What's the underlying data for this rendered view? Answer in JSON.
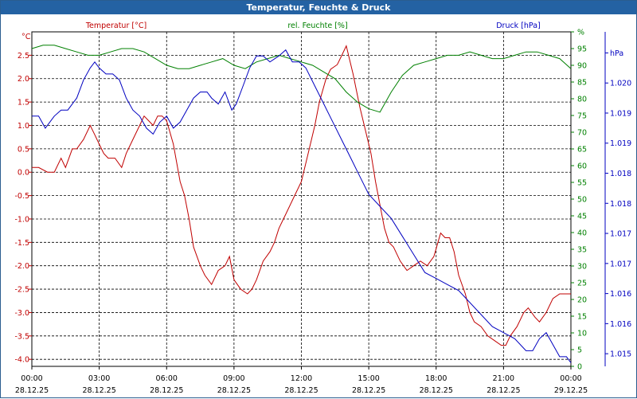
{
  "window": {
    "title": "Temperatur, Feuchte & Druck"
  },
  "chart_data": {
    "type": "line",
    "title": "Temperatur, Feuchte & Druck",
    "x_ticks": [
      {
        "hours": 0,
        "time": "00:00",
        "date": "28.12.25"
      },
      {
        "hours": 3,
        "time": "03:00",
        "date": "28.12.25"
      },
      {
        "hours": 6,
        "time": "06:00",
        "date": "28.12.25"
      },
      {
        "hours": 9,
        "time": "09:00",
        "date": "28.12.25"
      },
      {
        "hours": 12,
        "time": "12:00",
        "date": "28.12.25"
      },
      {
        "hours": 15,
        "time": "15:00",
        "date": "28.12.25"
      },
      {
        "hours": 18,
        "time": "18:00",
        "date": "28.12.25"
      },
      {
        "hours": 21,
        "time": "21:00",
        "date": "28.12.25"
      },
      {
        "hours": 24,
        "time": "00:00",
        "date": "29.12.25"
      }
    ],
    "xlim": [
      0,
      24
    ],
    "series": [
      {
        "name": "Temperatur [°C]",
        "unit": "°C",
        "color": "#c00000",
        "ylim": [
          -4.15,
          3.0
        ],
        "ticks": [
          "-4.0",
          "-3.5",
          "-3.0",
          "-2.5",
          "-2.0",
          "-1.5",
          "-1.0",
          "-0.5",
          "0.0",
          "0.5",
          "1.0",
          "1.5",
          "2.0",
          "2.5"
        ],
        "x": [
          0,
          0.3,
          0.7,
          1.0,
          1.3,
          1.5,
          1.8,
          2.0,
          2.3,
          2.6,
          2.8,
          3.0,
          3.2,
          3.4,
          3.7,
          4.0,
          4.2,
          4.5,
          4.8,
          5.0,
          5.2,
          5.4,
          5.6,
          5.8,
          6.0,
          6.3,
          6.6,
          6.8,
          7.0,
          7.2,
          7.5,
          7.7,
          8.0,
          8.3,
          8.6,
          8.8,
          9.0,
          9.3,
          9.6,
          9.8,
          10.0,
          10.3,
          10.6,
          10.8,
          11.0,
          11.3,
          11.6,
          12.0,
          12.3,
          12.6,
          12.8,
          13.1,
          13.3,
          13.6,
          13.8,
          14.0,
          14.3,
          14.6,
          14.9,
          15.1,
          15.3,
          15.5,
          15.7,
          15.9,
          16.1,
          16.4,
          16.7,
          17.0,
          17.3,
          17.6,
          17.9,
          18.2,
          18.4,
          18.6,
          18.8,
          19.0,
          19.3,
          19.5,
          19.7,
          20.0,
          20.3,
          20.6,
          20.9,
          21.1,
          21.3,
          21.6,
          21.9,
          22.1,
          22.4,
          22.6,
          22.9,
          23.2,
          23.5,
          23.8,
          24.0
        ],
        "values": [
          0.1,
          0.1,
          0.0,
          0.0,
          0.3,
          0.1,
          0.5,
          0.5,
          0.7,
          1.0,
          0.8,
          0.6,
          0.4,
          0.3,
          0.3,
          0.1,
          0.4,
          0.7,
          1.0,
          1.2,
          1.1,
          1.0,
          1.2,
          1.2,
          1.1,
          0.6,
          -0.2,
          -0.5,
          -1.0,
          -1.6,
          -2.0,
          -2.2,
          -2.4,
          -2.1,
          -2.0,
          -1.8,
          -2.3,
          -2.5,
          -2.6,
          -2.5,
          -2.3,
          -1.9,
          -1.7,
          -1.5,
          -1.2,
          -0.9,
          -0.6,
          -0.2,
          0.4,
          1.0,
          1.5,
          2.0,
          2.2,
          2.3,
          2.5,
          2.7,
          2.1,
          1.4,
          0.8,
          0.4,
          -0.2,
          -0.7,
          -1.2,
          -1.5,
          -1.6,
          -1.9,
          -2.1,
          -2.0,
          -1.9,
          -2.0,
          -1.8,
          -1.3,
          -1.4,
          -1.4,
          -1.7,
          -2.2,
          -2.6,
          -3.0,
          -3.2,
          -3.3,
          -3.5,
          -3.6,
          -3.7,
          -3.7,
          -3.5,
          -3.3,
          -3.0,
          -2.9,
          -3.1,
          -3.2,
          -3.0,
          -2.7,
          -2.6,
          -2.6,
          -2.6
        ]
      },
      {
        "name": "rel. Feuchte [%]",
        "unit": "%",
        "color": "#008000",
        "ylim": [
          0,
          100
        ],
        "ticks": [
          "0",
          "5",
          "10",
          "15",
          "20",
          "25",
          "30",
          "35",
          "40",
          "45",
          "50",
          "55",
          "60",
          "65",
          "70",
          "75",
          "80",
          "85",
          "90",
          "95",
          "%"
        ],
        "x": [
          0,
          0.5,
          1.0,
          1.5,
          2.0,
          2.5,
          3.0,
          3.5,
          4.0,
          4.5,
          5.0,
          5.5,
          6.0,
          6.5,
          7.0,
          7.5,
          8.0,
          8.5,
          9.0,
          9.5,
          10.0,
          10.5,
          11.0,
          11.5,
          12.0,
          12.5,
          13.0,
          13.5,
          14.0,
          14.5,
          15.0,
          15.5,
          16.0,
          16.5,
          17.0,
          17.5,
          18.0,
          18.5,
          19.0,
          19.5,
          20.0,
          20.5,
          21.0,
          21.5,
          22.0,
          22.5,
          23.0,
          23.5,
          24.0
        ],
        "values": [
          95,
          96,
          96,
          95,
          94,
          93,
          93,
          94,
          95,
          95,
          94,
          92,
          90,
          89,
          89,
          90,
          91,
          92,
          90,
          89,
          91,
          92,
          93,
          92,
          91,
          90,
          88,
          86,
          82,
          79,
          77,
          76,
          82,
          87,
          90,
          91,
          92,
          93,
          93,
          94,
          93,
          92,
          92,
          93,
          94,
          94,
          93,
          92,
          89
        ]
      },
      {
        "name": "Druck [hPa]",
        "unit": "hPa",
        "color": "#0000c0",
        "ylim": [
          1014.74,
          1020.3
        ],
        "ticks": [
          "1.015",
          "1.016",
          "1.016",
          "1.017",
          "1.017",
          "1.018",
          "1.018",
          "1.019",
          "1.019",
          "1.020",
          "hPa"
        ],
        "x": [
          0,
          0.3,
          0.6,
          0.8,
          1.0,
          1.3,
          1.6,
          2.0,
          2.3,
          2.6,
          2.8,
          3.0,
          3.3,
          3.6,
          3.9,
          4.2,
          4.5,
          4.8,
          5.1,
          5.4,
          5.7,
          6.0,
          6.3,
          6.6,
          6.9,
          7.2,
          7.5,
          7.8,
          8.0,
          8.3,
          8.6,
          8.9,
          9.1,
          9.4,
          9.7,
          10.0,
          10.3,
          10.6,
          11.0,
          11.3,
          11.6,
          11.9,
          12.2,
          12.6,
          13.0,
          13.4,
          13.8,
          14.2,
          14.6,
          15.0,
          15.5,
          16.0,
          16.5,
          17.0,
          17.5,
          18.0,
          18.5,
          19.0,
          19.5,
          20.0,
          20.5,
          21.0,
          21.5,
          22.0,
          22.3,
          22.6,
          22.9,
          23.2,
          23.5,
          23.8,
          24.0
        ],
        "values": [
          1018.9,
          1018.9,
          1018.7,
          1018.8,
          1018.9,
          1019.0,
          1019.0,
          1019.2,
          1019.5,
          1019.7,
          1019.8,
          1019.7,
          1019.6,
          1019.6,
          1019.5,
          1019.2,
          1019.0,
          1018.9,
          1018.7,
          1018.6,
          1018.8,
          1018.9,
          1018.7,
          1018.8,
          1019.0,
          1019.2,
          1019.3,
          1019.3,
          1019.2,
          1019.1,
          1019.3,
          1019.0,
          1019.1,
          1019.4,
          1019.7,
          1019.9,
          1019.9,
          1019.8,
          1019.9,
          1020.0,
          1019.8,
          1019.8,
          1019.7,
          1019.4,
          1019.1,
          1018.8,
          1018.5,
          1018.2,
          1017.9,
          1017.6,
          1017.4,
          1017.2,
          1016.9,
          1016.6,
          1016.3,
          1016.2,
          1016.1,
          1016.0,
          1015.8,
          1015.6,
          1015.4,
          1015.3,
          1015.2,
          1015.0,
          1015.0,
          1015.2,
          1015.3,
          1015.1,
          1014.9,
          1014.9,
          1014.8
        ]
      }
    ]
  }
}
